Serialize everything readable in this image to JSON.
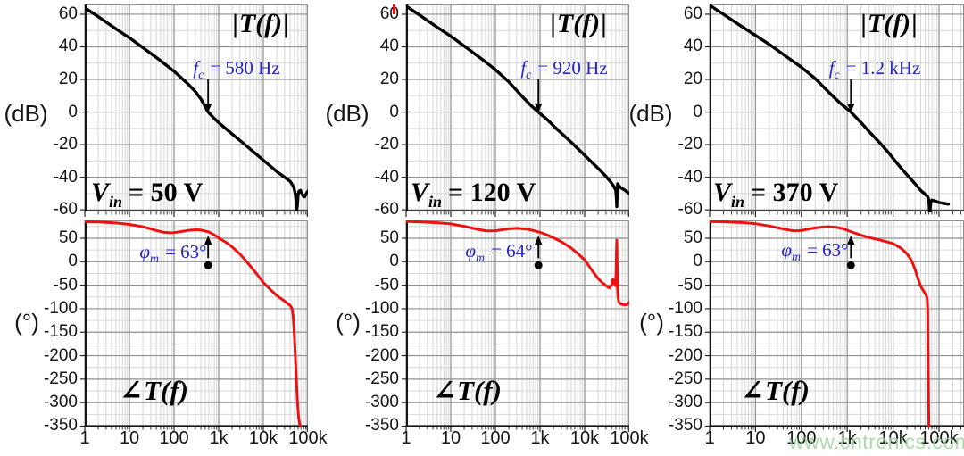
{
  "watermark": {
    "text": "www.cntronics.com",
    "color": "#9fd6a2"
  },
  "colors": {
    "curve_magnitude": "#000000",
    "curve_phase": "#ee1111",
    "annotation_blue": "#2323c8",
    "grid_major": "#8f8f8f",
    "grid_minor": "#d6d6d6",
    "axis_spine": "#151515",
    "watermark_green": "#9fd6a2"
  },
  "axes": {
    "mag_unit": "(dB)",
    "phase_unit": "(°)",
    "x_tick_labels": [
      "1",
      "10",
      "100",
      "1k",
      "10k",
      "100k"
    ],
    "x_tick_values": [
      1,
      10,
      100,
      1000,
      10000,
      100000
    ],
    "mag_y_tick_labels": [
      "60",
      "40",
      "20",
      "0",
      "-20",
      "-40",
      "-60"
    ],
    "mag_y_tick_values": [
      60,
      40,
      20,
      0,
      -20,
      -40,
      -60
    ],
    "phase_y_tick_labels": [
      "50",
      "0",
      "-50",
      "-100",
      "-150",
      "-200",
      "-250",
      "-300",
      "-350"
    ],
    "phase_y_tick_values": [
      50,
      0,
      -50,
      -100,
      -150,
      -200,
      -250,
      -300,
      -350
    ]
  },
  "labels": {
    "mag_title": {
      "open": "|",
      "body": "T(f)",
      "close": "|"
    },
    "phase_title": {
      "prefix": "∠",
      "body": "T(f)"
    }
  },
  "columns": [
    {
      "fc": {
        "sym": "f",
        "sub": "c",
        "rest": "= 580 Hz"
      },
      "vin": {
        "sym": "V",
        "sub": "in",
        "rest": "= 50 V"
      },
      "phi": {
        "sym": "φ",
        "sub": "m",
        "rest": "= 63°"
      }
    },
    {
      "fc": {
        "sym": "f",
        "sub": "c",
        "rest": "= 920 Hz"
      },
      "vin": {
        "sym": "V",
        "sub": "in",
        "rest": "= 120 V"
      },
      "phi": {
        "sym": "φ",
        "sub": "m",
        "rest": "= 64°"
      }
    },
    {
      "fc": {
        "sym": "f",
        "sub": "c",
        "rest": "= 1.2 kHz"
      },
      "vin": {
        "sym": "V",
        "sub": "in",
        "rest": "= 370 V"
      },
      "phi": {
        "sym": "φ",
        "sub": "m",
        "rest": "= 63°"
      }
    }
  ],
  "chart_data": [
    {
      "type": "line",
      "id": "magnitude-vin-50",
      "title": "|T(f)|",
      "ylabel": "(dB)",
      "x_scale": "log",
      "x_range": [
        1,
        100000
      ],
      "y_range": [
        -61,
        66
      ],
      "grid": true,
      "marker": "crossover-arrow",
      "crossover_hz": 580,
      "annotations": [
        "fc = 580 Hz",
        "Vin = 50 V"
      ],
      "series": [
        {
          "name": "|T(f)| at Vin=50V",
          "color": "#000000",
          "points": [
            [
              1,
              64
            ],
            [
              2,
              58.5
            ],
            [
              5,
              51
            ],
            [
              10,
              45.5
            ],
            [
              20,
              39.5
            ],
            [
              50,
              31.5
            ],
            [
              100,
              25
            ],
            [
              200,
              17.5
            ],
            [
              300,
              12.5
            ],
            [
              400,
              8
            ],
            [
              580,
              0
            ],
            [
              800,
              -4
            ],
            [
              1000,
              -6.5
            ],
            [
              2000,
              -13.5
            ],
            [
              3000,
              -17.5
            ],
            [
              5000,
              -22.5
            ],
            [
              10000,
              -29.5
            ],
            [
              20000,
              -36.5
            ],
            [
              30000,
              -40
            ],
            [
              40000,
              -42.5
            ],
            [
              48000,
              -46
            ],
            [
              52000,
              -50
            ],
            [
              54500,
              -55
            ],
            [
              56000,
              -60
            ],
            [
              58000,
              -57
            ],
            [
              60000,
              -51
            ],
            [
              63000,
              -48.5
            ],
            [
              68000,
              -48
            ],
            [
              72000,
              -49.5
            ],
            [
              78000,
              -51.5
            ],
            [
              84000,
              -52
            ],
            [
              92000,
              -50
            ],
            [
              100000,
              -48.5
            ]
          ]
        }
      ]
    },
    {
      "type": "line",
      "id": "phase-vin-50",
      "title": "∠T(f)",
      "ylabel": "(°)",
      "x_scale": "log",
      "x_range": [
        1,
        100000
      ],
      "y_range": [
        -350,
        88
      ],
      "grid": true,
      "marker": "phase-margin-dot",
      "crossover_hz": 580,
      "phase_margin_deg": 63,
      "annotations": [
        "φm = 63°"
      ],
      "series": [
        {
          "name": "phase at Vin=50V",
          "color": "#ee1111",
          "points": [
            [
              1,
              85
            ],
            [
              2,
              84.5
            ],
            [
              5,
              82.5
            ],
            [
              10,
              79.5
            ],
            [
              20,
              74.5
            ],
            [
              40,
              66.5
            ],
            [
              60,
              62.5
            ],
            [
              80,
              61.5
            ],
            [
              100,
              62
            ],
            [
              150,
              64.5
            ],
            [
              200,
              66.5
            ],
            [
              300,
              68
            ],
            [
              400,
              67.5
            ],
            [
              600,
              63.5
            ],
            [
              800,
              57
            ],
            [
              1000,
              50.5
            ],
            [
              1500,
              40.5
            ],
            [
              2000,
              31.5
            ],
            [
              3000,
              16
            ],
            [
              4000,
              3
            ],
            [
              5000,
              -8
            ],
            [
              7000,
              -25
            ],
            [
              10000,
              -44
            ],
            [
              15000,
              -61
            ],
            [
              20000,
              -72
            ],
            [
              30000,
              -84
            ],
            [
              40000,
              -93
            ],
            [
              44000,
              -100
            ],
            [
              47000,
              -120
            ],
            [
              50000,
              -160
            ],
            [
              53000,
              -215
            ],
            [
              56000,
              -265
            ],
            [
              59000,
              -305
            ],
            [
              62000,
              -332
            ],
            [
              65000,
              -344
            ],
            [
              68000,
              -350
            ]
          ]
        }
      ]
    },
    {
      "type": "line",
      "id": "magnitude-vin-120",
      "title": "|T(f)|",
      "ylabel": "(dB)",
      "x_scale": "log",
      "x_range": [
        1,
        100000
      ],
      "y_range": [
        -61,
        66
      ],
      "grid": true,
      "marker": "crossover-arrow",
      "crossover_hz": 920,
      "annotations": [
        "fc = 920 Hz",
        "Vin = 120 V"
      ],
      "series": [
        {
          "name": "|T(f)| at Vin=120V",
          "color": "#000000",
          "points": [
            [
              1,
              65
            ],
            [
              2,
              59.5
            ],
            [
              5,
              52
            ],
            [
              10,
              46.5
            ],
            [
              20,
              40.5
            ],
            [
              50,
              32.5
            ],
            [
              100,
              26
            ],
            [
              200,
              18.5
            ],
            [
              400,
              9.5
            ],
            [
              600,
              4.5
            ],
            [
              920,
              0
            ],
            [
              1500,
              -5
            ],
            [
              2000,
              -8.5
            ],
            [
              3000,
              -13
            ],
            [
              5000,
              -18.5
            ],
            [
              10000,
              -26.5
            ],
            [
              20000,
              -34.5
            ],
            [
              30000,
              -39.5
            ],
            [
              40000,
              -43.5
            ],
            [
              46000,
              -46
            ],
            [
              50000,
              -48
            ],
            [
              51500,
              -53
            ],
            [
              52500,
              -58
            ],
            [
              53500,
              -50
            ],
            [
              55000,
              -44
            ],
            [
              58000,
              -45
            ],
            [
              65000,
              -46.5
            ],
            [
              75000,
              -47.5
            ],
            [
              90000,
              -49
            ],
            [
              100000,
              -50
            ]
          ]
        }
      ]
    },
    {
      "type": "line",
      "id": "phase-vin-120",
      "title": "∠T(f)",
      "ylabel": "(°)",
      "x_scale": "log",
      "x_range": [
        1,
        100000
      ],
      "y_range": [
        -350,
        88
      ],
      "grid": true,
      "marker": "phase-margin-dot",
      "crossover_hz": 920,
      "phase_margin_deg": 64,
      "annotations": [
        "φm = 64°"
      ],
      "series": [
        {
          "name": "phase at Vin=120V",
          "color": "#ee1111",
          "points": [
            [
              1,
              85.5
            ],
            [
              2,
              85
            ],
            [
              5,
              83
            ],
            [
              10,
              80.5
            ],
            [
              20,
              75.5
            ],
            [
              40,
              69
            ],
            [
              60,
              66
            ],
            [
              80,
              65.5
            ],
            [
              100,
              66
            ],
            [
              150,
              68.5
            ],
            [
              200,
              70
            ],
            [
              300,
              71
            ],
            [
              500,
              69.5
            ],
            [
              700,
              66.5
            ],
            [
              1000,
              62.5
            ],
            [
              1500,
              56.5
            ],
            [
              2000,
              51
            ],
            [
              3000,
              42.5
            ],
            [
              5000,
              29
            ],
            [
              7000,
              17.5
            ],
            [
              10000,
              4
            ],
            [
              15000,
              -20
            ],
            [
              20000,
              -36
            ],
            [
              25000,
              -45
            ],
            [
              30000,
              -51
            ],
            [
              36000,
              -56
            ],
            [
              40000,
              -50
            ],
            [
              43000,
              -38
            ],
            [
              46000,
              -44
            ],
            [
              48500,
              -51
            ],
            [
              50500,
              -25
            ],
            [
              51500,
              20
            ],
            [
              52500,
              46
            ],
            [
              53500,
              -5
            ],
            [
              54500,
              -55
            ],
            [
              56000,
              -75
            ],
            [
              58000,
              -85
            ],
            [
              62000,
              -89
            ],
            [
              70000,
              -91
            ],
            [
              80000,
              -92
            ],
            [
              90000,
              -91
            ],
            [
              100000,
              -86
            ]
          ]
        }
      ]
    },
    {
      "type": "line",
      "id": "magnitude-vin-370",
      "title": "|T(f)|",
      "ylabel": "(dB)",
      "x_scale": "log",
      "x_range": [
        1,
        160000
      ],
      "y_range": [
        -61,
        66
      ],
      "grid": true,
      "marker": "crossover-arrow",
      "crossover_hz": 1200,
      "annotations": [
        "fc = 1.2 kHz",
        "Vin = 370 V"
      ],
      "series": [
        {
          "name": "|T(f)| at Vin=370V",
          "color": "#000000",
          "points": [
            [
              1,
              65.5
            ],
            [
              2,
              60
            ],
            [
              5,
              52.5
            ],
            [
              10,
              47
            ],
            [
              20,
              41.5
            ],
            [
              50,
              33.5
            ],
            [
              100,
              27.5
            ],
            [
              200,
              20.5
            ],
            [
              400,
              12
            ],
            [
              700,
              5.5
            ],
            [
              1200,
              0
            ],
            [
              2000,
              -6.5
            ],
            [
              3000,
              -12
            ],
            [
              5000,
              -18.5
            ],
            [
              8000,
              -25
            ],
            [
              10000,
              -28.5
            ],
            [
              15000,
              -34.5
            ],
            [
              20000,
              -38.5
            ],
            [
              30000,
              -44
            ],
            [
              40000,
              -48
            ],
            [
              50000,
              -50.5
            ],
            [
              55000,
              -51.5
            ],
            [
              58000,
              -52.5
            ],
            [
              60000,
              -54
            ],
            [
              61500,
              -58
            ],
            [
              62500,
              -63
            ],
            [
              64000,
              -60
            ],
            [
              66000,
              -55.5
            ],
            [
              70000,
              -54
            ],
            [
              80000,
              -54.5
            ],
            [
              100000,
              -55.5
            ],
            [
              130000,
              -56
            ],
            [
              160000,
              -56.5
            ]
          ]
        }
      ]
    },
    {
      "type": "line",
      "id": "phase-vin-370",
      "title": "∠T(f)",
      "ylabel": "(°)",
      "x_scale": "log",
      "x_range": [
        1,
        100000
      ],
      "y_range": [
        -350,
        88
      ],
      "grid": true,
      "marker": "phase-margin-dot",
      "crossover_hz": 1200,
      "phase_margin_deg": 63,
      "annotations": [
        "φm = 63°"
      ],
      "series": [
        {
          "name": "phase at Vin=370V",
          "color": "#ee1111",
          "points": [
            [
              1,
              85.5
            ],
            [
              2,
              85
            ],
            [
              5,
              83.5
            ],
            [
              10,
              81
            ],
            [
              20,
              76
            ],
            [
              40,
              70
            ],
            [
              60,
              66.5
            ],
            [
              80,
              65.5
            ],
            [
              100,
              66.5
            ],
            [
              150,
              70
            ],
            [
              200,
              72
            ],
            [
              300,
              74
            ],
            [
              400,
              74.5
            ],
            [
              600,
              73
            ],
            [
              800,
              70.5
            ],
            [
              1200,
              64
            ],
            [
              2000,
              56.5
            ],
            [
              3000,
              51.5
            ],
            [
              5000,
              46.5
            ],
            [
              8000,
              41.5
            ],
            [
              10000,
              38.5
            ],
            [
              15000,
              28.5
            ],
            [
              20000,
              17
            ],
            [
              25000,
              3
            ],
            [
              30000,
              -16
            ],
            [
              35000,
              -37
            ],
            [
              40000,
              -52
            ],
            [
              45000,
              -61
            ],
            [
              50000,
              -68
            ],
            [
              53000,
              -72
            ],
            [
              55000,
              -78
            ],
            [
              56500,
              -100
            ],
            [
              57500,
              -160
            ],
            [
              58500,
              -230
            ],
            [
              59200,
              -290
            ],
            [
              59800,
              -330
            ],
            [
              60300,
              -350
            ]
          ]
        }
      ]
    }
  ]
}
